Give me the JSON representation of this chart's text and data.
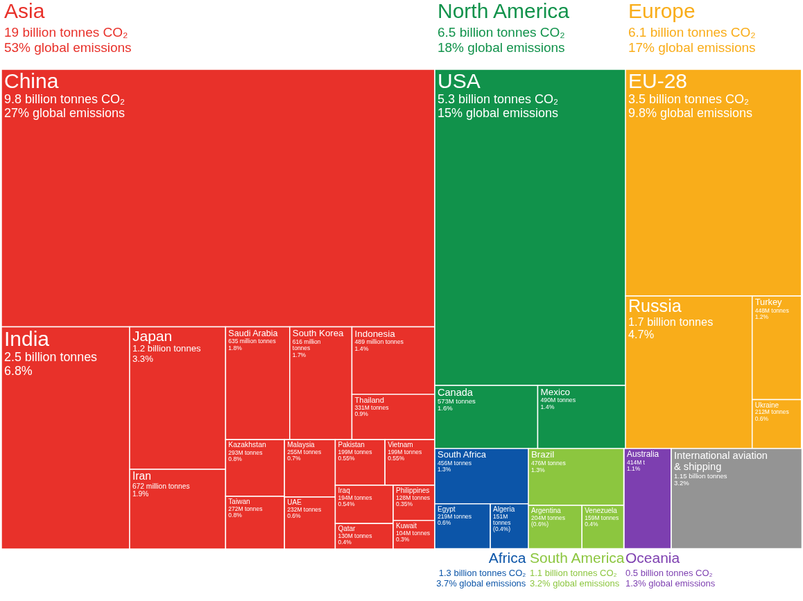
{
  "chart_data": [
    {
      "type": "other",
      "title": "Asia",
      "annotations": [
        "19 billion tonnes CO₂",
        "53% global emissions"
      ],
      "categories": [
        "China",
        "India",
        "Japan",
        "Iran",
        "Saudi Arabia",
        "South Korea",
        "Indonesia",
        "Thailand",
        "Kazakhstan",
        "Taiwan",
        "Malaysia",
        "UAE",
        "Pakistan",
        "Vietnam",
        "Iraq",
        "Qatar",
        "Philippines",
        "Kuwait"
      ],
      "values": [
        9800000000,
        2500000000,
        1200000000,
        672000000,
        635000000,
        616000000,
        489000000,
        331000000,
        293000000,
        272000000,
        255000000,
        232000000,
        199000000,
        199000000,
        194000000,
        130000000,
        128000000,
        104000000
      ],
      "value_labels": [
        "9.8 billion tonnes CO₂\n27% global emissions",
        "2.5 billion tonnes\n6.8%",
        "1.2 billion tonnes\n3.3%",
        "672 million tonnes\n1.9%",
        "635 million tonnes\n1.8%",
        "616 million tonnes\n1.7%",
        "489 million tonnes\n1.4%",
        "331M tonnes\n0.9%",
        "293M tonnes\n0.8%",
        "272M tonnes\n0.8%",
        "255M tonnes\n0.7%",
        "232M tonnes\n0.6%",
        "199M tonnes\n0.55%",
        "199M tonnes\n0.55%",
        "194M tonnes\n0.54%",
        "130M tonnes\n0.4%",
        "128M tonnes\n0.35%",
        "104M tonnes\n0.3%"
      ],
      "colors": [
        "#e8312a",
        "#e8312a",
        "#e8312a",
        "#e8312a",
        "#e8312a",
        "#e8312a",
        "#e8312a",
        "#e8312a",
        "#e8312a",
        "#e8312a",
        "#e8312a",
        "#e8312a",
        "#e8312a",
        "#e8312a",
        "#e8312a",
        "#e8312a",
        "#e8312a",
        "#e8312a"
      ]
    },
    {
      "type": "other",
      "title": "North America",
      "annotations": [
        "6.5 billion tonnes CO₂",
        "18% global emissions"
      ],
      "categories": [
        "USA",
        "Canada",
        "Mexico"
      ],
      "values": [
        5300000000,
        573000000,
        490000000
      ],
      "value_labels": [
        "5.3 billion tonnes CO₂\n15% global emissions",
        "573M tonnes\n1.6%",
        "490M tonnes\n1.4%"
      ],
      "colors": [
        "#11924b",
        "#11924b",
        "#11924b"
      ]
    },
    {
      "type": "other",
      "title": "Europe",
      "annotations": [
        "6.1 billion tonnes CO₂",
        "17% global emissions"
      ],
      "categories": [
        "EU-28",
        "Russia",
        "Turkey",
        "Ukraine"
      ],
      "values": [
        3500000000,
        1700000000,
        448000000,
        212000000
      ],
      "value_labels": [
        "3.5 billion tonnes CO₂\n9.8% global emissions",
        "1.7 billion tonnes\n4.7%",
        "448M tonnes\n1.2%",
        "212M tonnes\n0.6%"
      ],
      "colors": [
        "#f9ad1a",
        "#f9ad1a",
        "#f9ad1a",
        "#f9ad1a"
      ]
    },
    {
      "type": "other",
      "title": "Africa",
      "annotations": [
        "1.3 billion tonnes CO₂",
        "3.7% global emissions"
      ],
      "categories": [
        "South Africa",
        "Egypt",
        "Algeria"
      ],
      "values": [
        456000000,
        219000000,
        151000000
      ],
      "value_labels": [
        "456M tonnes\n1.3%",
        "219M tonnes\n0.6%",
        "151M tonnes (0.4%)"
      ],
      "colors": [
        "#0c55a8",
        "#0c55a8",
        "#0c55a8"
      ]
    },
    {
      "type": "other",
      "title": "South America",
      "annotations": [
        "1.1 billion tonnes CO₂",
        "3.2% global emissions"
      ],
      "categories": [
        "Brazil",
        "Argentina",
        "Venezuela"
      ],
      "values": [
        476000000,
        204000000,
        159000000
      ],
      "value_labels": [
        "476M tonnes\n1.3%",
        "204M tonnes (0.6%)",
        "159M tonnes\n0.4%"
      ],
      "colors": [
        "#8cc63f",
        "#8cc63f",
        "#8cc63f"
      ]
    },
    {
      "type": "other",
      "title": "Oceania",
      "annotations": [
        "0.5 billion tonnes CO₂",
        "1.3% global emissions"
      ],
      "categories": [
        "Australia"
      ],
      "values": [
        414000000
      ],
      "value_labels": [
        "414M t\n1.1%"
      ],
      "colors": [
        "#7d3fb0"
      ]
    },
    {
      "type": "other",
      "categories": [
        "International aviation\n& shipping"
      ],
      "values": [
        1150000000
      ],
      "value_labels": [
        "1.15 billion tonnes\n3.2%"
      ],
      "colors": [
        "#949494"
      ]
    }
  ]
}
